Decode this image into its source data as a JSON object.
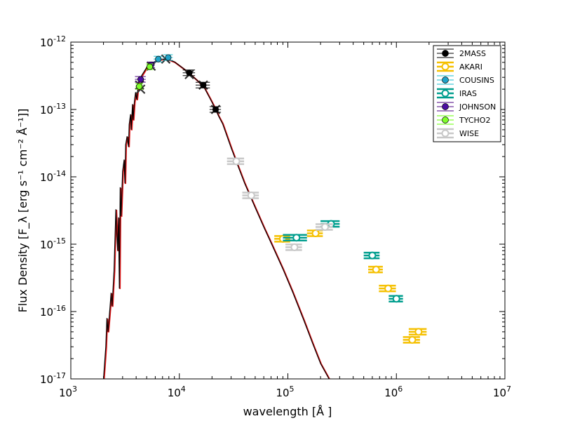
{
  "chart_data": {
    "type": "scatter",
    "xscale": "log",
    "yscale": "log",
    "xlim": [
      1000,
      10000000
    ],
    "ylim": [
      1e-17,
      1e-12
    ],
    "xlabel": "wavelength [Å ]",
    "ylabel": "Flux Density [F_λ [erg  s⁻¹  cm⁻² Å⁻¹]]",
    "x_ticks": [
      {
        "value": 1000,
        "base": "10",
        "exp": "3"
      },
      {
        "value": 10000,
        "base": "10",
        "exp": "4"
      },
      {
        "value": 100000,
        "base": "10",
        "exp": "5"
      },
      {
        "value": 1000000,
        "base": "10",
        "exp": "6"
      },
      {
        "value": 10000000,
        "base": "10",
        "exp": "7"
      }
    ],
    "y_ticks": [
      {
        "value": 1e-17,
        "base": "10",
        "exp": "-17"
      },
      {
        "value": 1e-16,
        "base": "10",
        "exp": "-16"
      },
      {
        "value": 1e-15,
        "base": "10",
        "exp": "-15"
      },
      {
        "value": 1e-14,
        "base": "10",
        "exp": "-14"
      },
      {
        "value": 1e-13,
        "base": "10",
        "exp": "-13"
      },
      {
        "value": 1e-12,
        "base": "10",
        "exp": "-12"
      }
    ],
    "legend_position": "top-right",
    "series": [
      {
        "name": "2MASS",
        "color": "#000000",
        "fill": "#000000",
        "points": [
          {
            "x": 12350,
            "y": 3.5e-13,
            "xerr": 1600
          },
          {
            "x": 16620,
            "y": 2.3e-13,
            "xerr": 2500
          },
          {
            "x": 21590,
            "y": 1e-13,
            "xerr": 2600
          }
        ]
      },
      {
        "name": "AKARI",
        "color": "#f5c000",
        "fill": "#ffffff",
        "points": [
          {
            "x": 90000,
            "y": 1.2e-15,
            "xerr": 15000
          },
          {
            "x": 180000,
            "y": 1.45e-15,
            "xerr": 30000
          },
          {
            "x": 650000,
            "y": 4.2e-16,
            "xerr": 100000
          },
          {
            "x": 840000,
            "y": 2.2e-16,
            "xerr": 150000
          },
          {
            "x": 1400000,
            "y": 3.8e-17,
            "xerr": 250000
          },
          {
            "x": 1600000,
            "y": 5e-17,
            "xerr": 300000
          }
        ]
      },
      {
        "name": "COUSINS",
        "color": "#17becf",
        "fill": "#1fa3c8",
        "points": [
          {
            "x": 6400,
            "y": 5.6e-13,
            "xerr": 600
          },
          {
            "x": 7900,
            "y": 5.9e-13,
            "xerr": 800
          }
        ]
      },
      {
        "name": "IRAS",
        "color": "#009e8e",
        "fill": "#ffffff",
        "points": [
          {
            "x": 120000,
            "y": 1.25e-15,
            "xerr": 30000
          },
          {
            "x": 250000,
            "y": 2e-15,
            "xerr": 50000
          },
          {
            "x": 600000,
            "y": 6.8e-16,
            "xerr": 100000
          },
          {
            "x": 1000000,
            "y": 1.55e-16,
            "xerr": 150000
          }
        ]
      },
      {
        "name": "JOHNSON",
        "color": "#4b0082",
        "fill": "#4b0ea0",
        "points": [
          {
            "x": 4400,
            "y": 2.8e-13,
            "xerr": 500
          },
          {
            "x": 5500,
            "y": 4.6e-13,
            "xerr": 450
          }
        ]
      },
      {
        "name": "TYCHO2",
        "color": "#66ff00",
        "fill": "#7fff2a",
        "points": [
          {
            "x": 4280,
            "y": 2.2e-13,
            "xerr": 350
          },
          {
            "x": 5340,
            "y": 4.3e-13,
            "xerr": 400
          }
        ]
      },
      {
        "name": "WISE",
        "color": "#c8c8c8",
        "fill": "#ffffff",
        "points": [
          {
            "x": 33500,
            "y": 1.7e-14,
            "xerr": 6000
          },
          {
            "x": 46000,
            "y": 5.3e-15,
            "xerr": 8000
          },
          {
            "x": 115000,
            "y": 9e-16,
            "xerr": 20000
          },
          {
            "x": 220000,
            "y": 1.8e-15,
            "xerr": 40000
          }
        ]
      }
    ],
    "model_markers": [
      {
        "x": 4300,
        "y": 2.3e-13
      },
      {
        "x": 4400,
        "y": 2e-13
      },
      {
        "x": 5500,
        "y": 4.4e-13
      },
      {
        "x": 7500,
        "y": 5.6e-13
      },
      {
        "x": 12350,
        "y": 3.3e-13
      },
      {
        "x": 16620,
        "y": 2.3e-13
      },
      {
        "x": 21590,
        "y": 1e-13
      }
    ],
    "model_curve": [
      [
        2000,
        1e-17
      ],
      [
        2100,
        3e-17
      ],
      [
        2150,
        8e-17
      ],
      [
        2200,
        5e-17
      ],
      [
        2300,
        1.2e-16
      ],
      [
        2350,
        1.9e-16
      ],
      [
        2400,
        1.2e-16
      ],
      [
        2500,
        4e-16
      ],
      [
        2600,
        3.3e-15
      ],
      [
        2650,
        1.5e-15
      ],
      [
        2700,
        8e-16
      ],
      [
        2750,
        2.5e-15
      ],
      [
        2800,
        2.2e-16
      ],
      [
        2850,
        7e-15
      ],
      [
        2900,
        2.6e-15
      ],
      [
        3000,
        1.2e-14
      ],
      [
        3100,
        1.8e-14
      ],
      [
        3150,
        8e-15
      ],
      [
        3200,
        3e-14
      ],
      [
        3300,
        4e-14
      ],
      [
        3400,
        2.8e-14
      ],
      [
        3450,
        6e-14
      ],
      [
        3550,
        8.5e-14
      ],
      [
        3600,
        5e-14
      ],
      [
        3700,
        1.2e-13
      ],
      [
        3750,
        7e-14
      ],
      [
        3850,
        1.3e-13
      ],
      [
        3950,
        1.8e-13
      ],
      [
        4050,
        1.4e-13
      ],
      [
        4200,
        2.5e-13
      ],
      [
        4500,
        3.2e-13
      ],
      [
        5000,
        4.2e-13
      ],
      [
        5500,
        4.8e-13
      ],
      [
        6000,
        5.2e-13
      ],
      [
        6500,
        5.5e-13
      ],
      [
        7000,
        5.6e-13
      ],
      [
        8000,
        5.5e-13
      ],
      [
        9000,
        5.1e-13
      ],
      [
        10000,
        4.5e-13
      ],
      [
        11500,
        3.8e-13
      ],
      [
        13000,
        3.2e-13
      ],
      [
        15000,
        2.6e-13
      ],
      [
        17000,
        2.1e-13
      ],
      [
        19000,
        1.5e-13
      ],
      [
        21000,
        1.1e-13
      ],
      [
        23000,
        8e-14
      ],
      [
        25000,
        6.2e-14
      ],
      [
        30000,
        2.7e-14
      ],
      [
        35000,
        1.4e-14
      ],
      [
        40000,
        8e-15
      ],
      [
        50000,
        3.5e-15
      ],
      [
        60000,
        1.8e-15
      ],
      [
        70000,
        1.05e-15
      ],
      [
        90000,
        4.3e-16
      ],
      [
        110000,
        2e-16
      ],
      [
        140000,
        7.5e-17
      ],
      [
        170000,
        3.3e-17
      ],
      [
        200000,
        1.7e-17
      ],
      [
        240000,
        1e-17
      ]
    ]
  }
}
